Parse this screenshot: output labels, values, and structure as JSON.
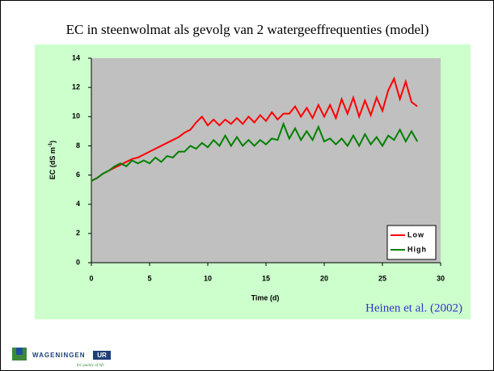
{
  "chart_data": {
    "type": "line",
    "title": "EC in steenwolmat als gevolg van 2 watergeeffrequenties (model)",
    "x_label": "Time (d)",
    "y_label": {
      "text": "EC (dS m",
      "superscript": "-1",
      "suffix": ")"
    },
    "annotation": "Heinen et al. (2002)",
    "logo": {
      "name": "WAGENINGEN",
      "suffix": "UR",
      "tagline": "for quality of life"
    },
    "legend": "lower right",
    "xlim": [
      0,
      30
    ],
    "xticks": [
      0,
      5,
      10,
      15,
      20,
      25,
      30
    ],
    "ylim": [
      0,
      14
    ],
    "yticks": [
      0,
      2,
      4,
      6,
      8,
      10,
      12,
      14
    ],
    "x": [
      0,
      0.5,
      1,
      1.5,
      2,
      2.5,
      3,
      3.5,
      4,
      4.5,
      5,
      5.5,
      6,
      6.5,
      7,
      7.5,
      8,
      8.5,
      9,
      9.5,
      10,
      10.5,
      11,
      11.5,
      12,
      12.5,
      13,
      13.5,
      14,
      14.5,
      15,
      15.5,
      16,
      16.5,
      17,
      17.5,
      18,
      18.5,
      19,
      19.5,
      20,
      20.5,
      21,
      21.5,
      22,
      22.5,
      23,
      23.5,
      24,
      24.5,
      25,
      25.5,
      26,
      26.5,
      27,
      27.5,
      28
    ],
    "series": [
      {
        "name": "Low",
        "color": "#ff0000",
        "values": [
          5.6,
          5.8,
          6.1,
          6.3,
          6.5,
          6.7,
          6.9,
          7.1,
          7.2,
          7.4,
          7.6,
          7.8,
          8.0,
          8.2,
          8.4,
          8.6,
          8.9,
          9.1,
          9.6,
          10.0,
          9.4,
          9.8,
          9.4,
          9.8,
          9.5,
          9.9,
          9.5,
          10.0,
          9.6,
          10.1,
          9.7,
          10.3,
          9.8,
          10.2,
          10.2,
          10.7,
          10.0,
          10.6,
          9.9,
          10.8,
          10.0,
          10.8,
          9.9,
          11.2,
          10.2,
          11.3,
          10.0,
          11.1,
          10.1,
          11.3,
          10.4,
          11.8,
          12.6,
          11.2,
          12.4,
          11.0,
          10.7
        ]
      },
      {
        "name": "High",
        "color": "#008000",
        "values": [
          5.6,
          5.8,
          6.1,
          6.3,
          6.6,
          6.8,
          6.6,
          7.0,
          6.8,
          7.0,
          6.8,
          7.2,
          6.9,
          7.3,
          7.2,
          7.6,
          7.6,
          8.0,
          7.8,
          8.2,
          7.9,
          8.4,
          8.0,
          8.7,
          8.0,
          8.6,
          8.0,
          8.4,
          8.0,
          8.4,
          8.1,
          8.5,
          8.4,
          9.5,
          8.5,
          9.2,
          8.4,
          9.0,
          8.4,
          9.3,
          8.3,
          8.5,
          8.1,
          8.5,
          8.0,
          8.7,
          8.0,
          8.8,
          8.1,
          8.6,
          8.0,
          8.7,
          8.4,
          9.1,
          8.3,
          9.0,
          8.3
        ]
      }
    ]
  }
}
